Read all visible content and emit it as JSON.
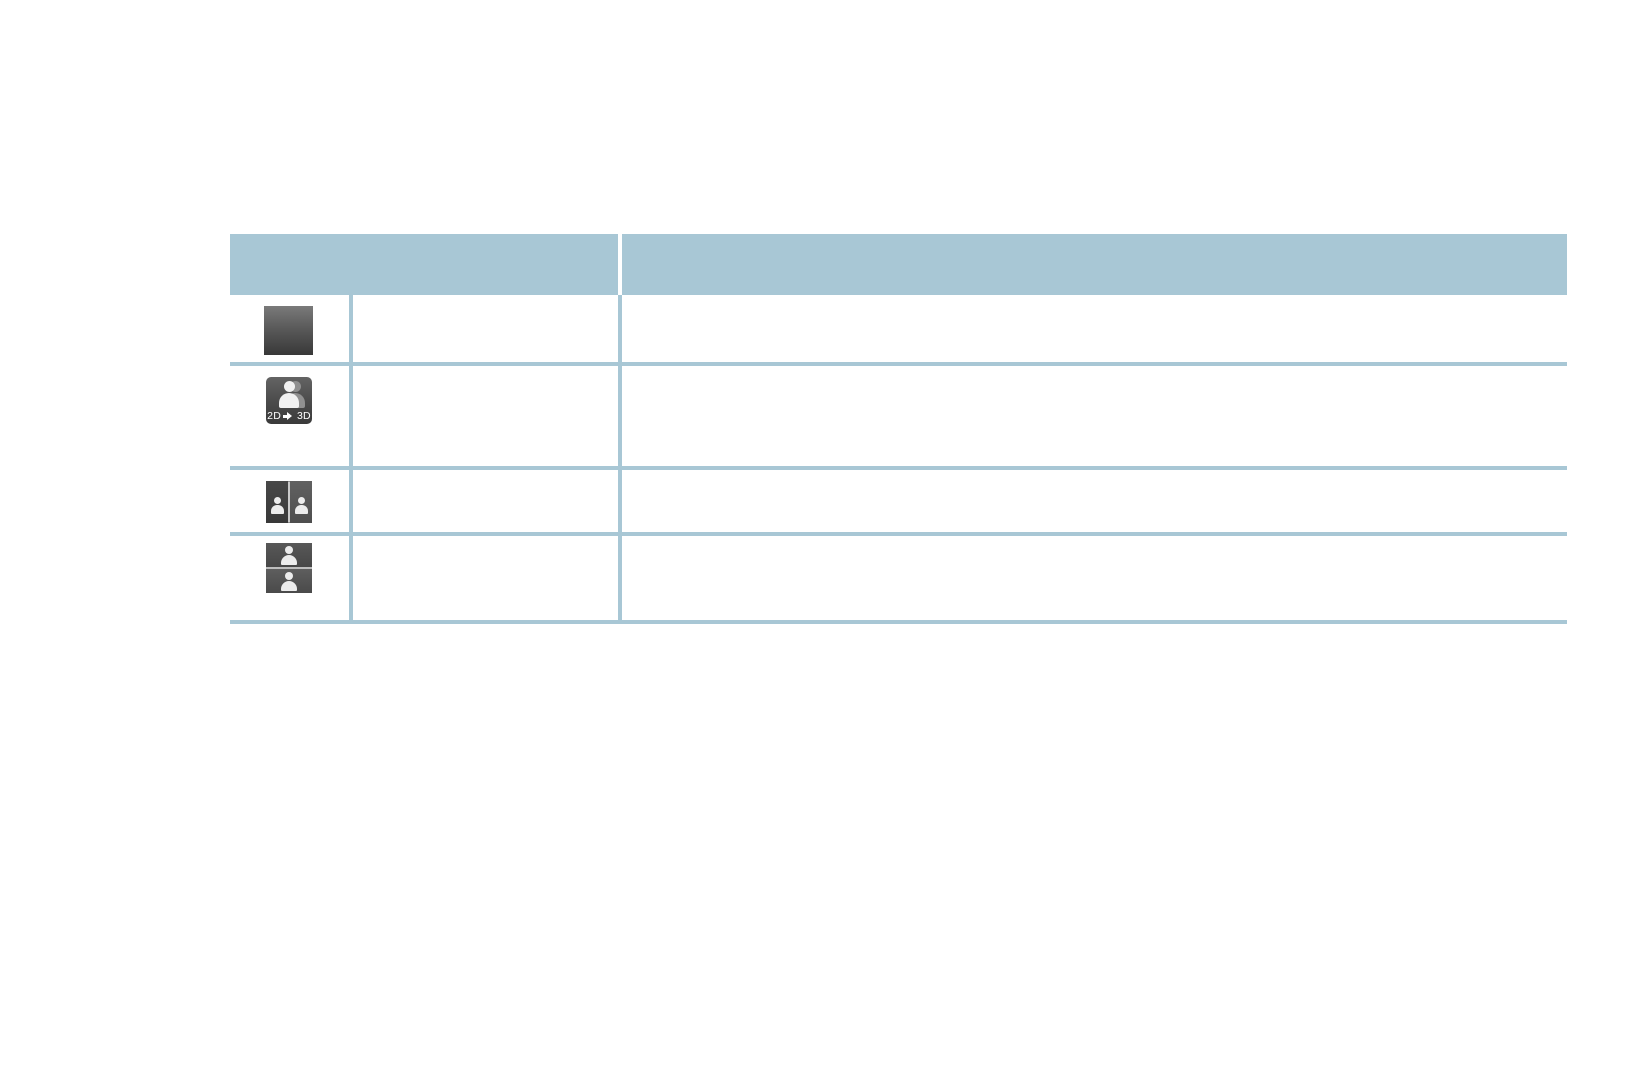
{
  "page": {
    "background_color": "#ffffff"
  },
  "table": {
    "accent_color": "#a8c7d5",
    "header": {
      "mode_label": "",
      "description_label": ""
    },
    "rows": [
      {
        "icon": "3d-off-icon",
        "mode_label": "",
        "description": ""
      },
      {
        "icon": "2d-to-3d-icon",
        "icon_text": {
          "left": "2D",
          "right": "3D"
        },
        "mode_label": "",
        "description": ""
      },
      {
        "icon": "3d-side-by-side-icon",
        "mode_label": "",
        "description": ""
      },
      {
        "icon": "3d-top-bottom-icon",
        "mode_label": "",
        "description": ""
      }
    ],
    "colors": {
      "header_fill": "#a8c7d5",
      "grid_line": "#a8c7d5",
      "icon_gradient_top": "#7a7a7a",
      "icon_gradient_bottom": "#383838",
      "icon_panel_dark": "#3e3e3e",
      "icon_panel_mid": "#555555",
      "silhouette_white": "#f0f0f0",
      "silhouette_shadow": "#909090",
      "icon_label_color": "#ffffff"
    }
  }
}
